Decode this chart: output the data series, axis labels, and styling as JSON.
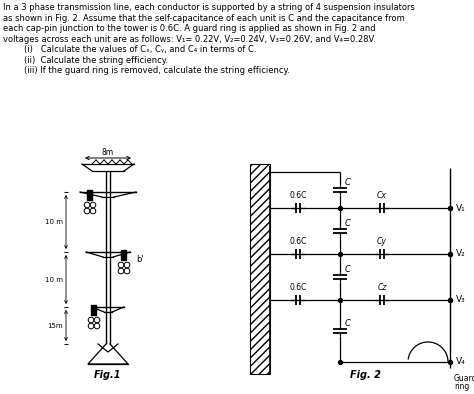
{
  "title_lines": [
    "In a 3 phase transmission line, each conductor is supported by a string of 4 suspension insulators",
    "as shown in Fig. 2. Assume that the self-capacitance of each unit is C and the capacitance from",
    "each cap-pin junction to the tower is 0.6C. A guard ring is applied as shown in Fig. 2 and",
    "voltages across each unit are as follows: V₁= 0.22V, V₂=0.24V, V₃=0.26V, and V₄=0.28V."
  ],
  "item_lines": [
    "        (i)   Calculate the values of Cₓ, Cᵧ, and C₄ in terms of C.",
    "        (ii)  Calculate the string efficiency.",
    "        (iii) If the guard ring is removed, calculate the string efficiency."
  ],
  "fig1_label": "Fig.1",
  "fig2_label": "Fig. 2",
  "bg": "#ffffff"
}
